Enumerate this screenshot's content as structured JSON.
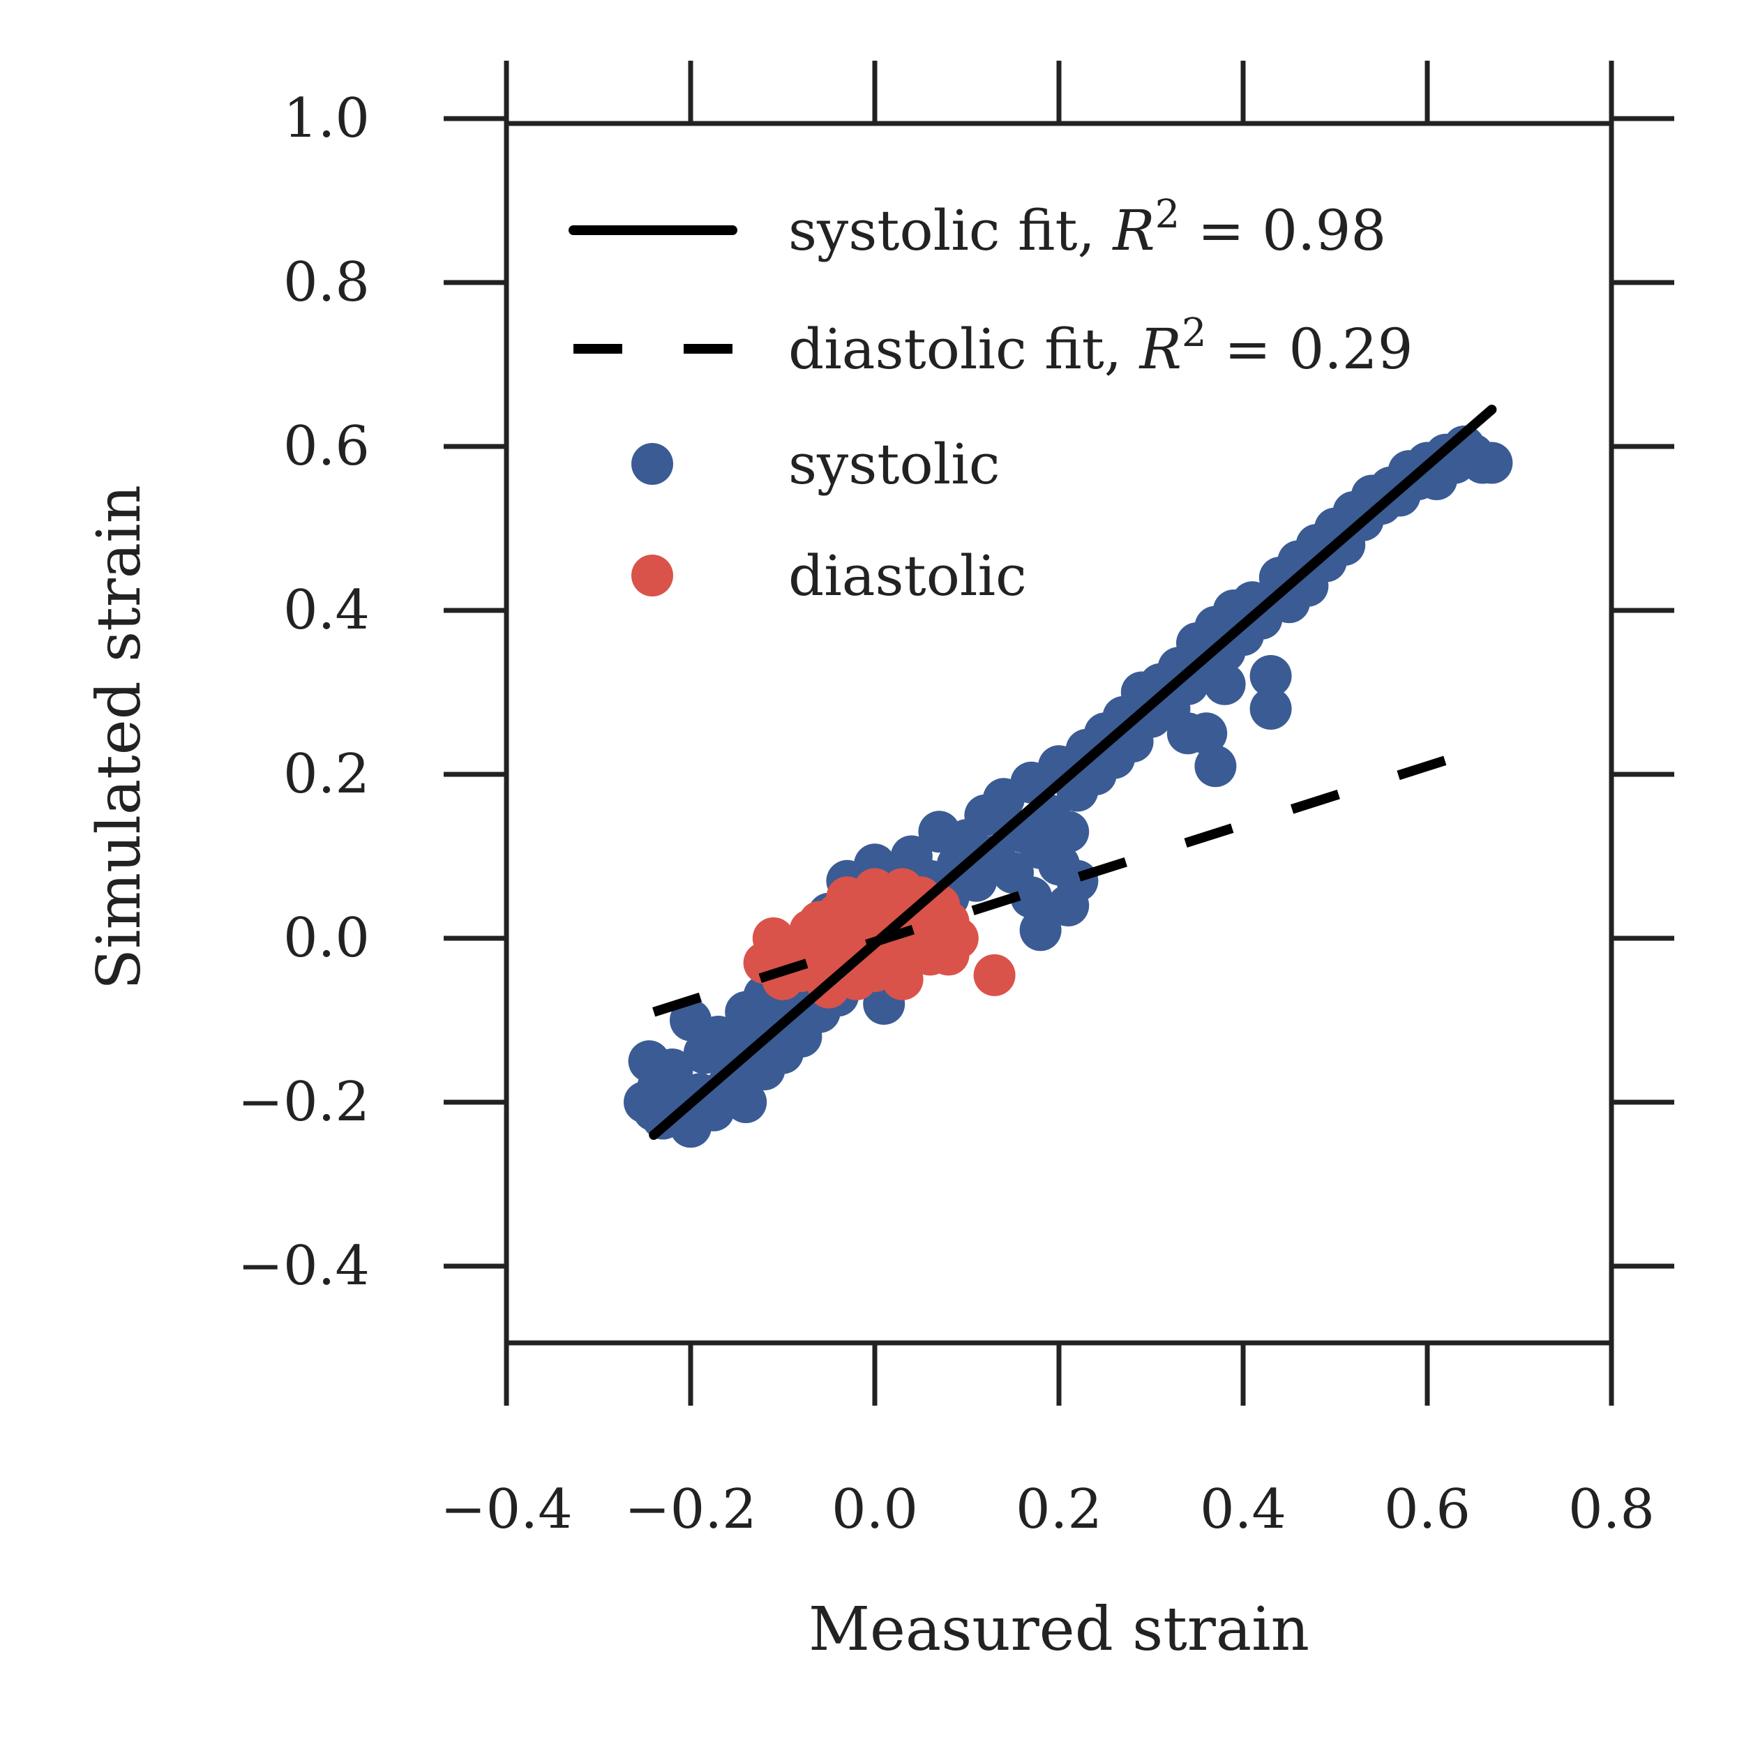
{
  "chart_data": {
    "type": "scatter",
    "title": "",
    "xlabel": "Measured strain",
    "ylabel": "Simulated strain",
    "xlim": [
      -0.4,
      0.8
    ],
    "ylim": [
      -0.5,
      1.0
    ],
    "xticks": [
      -0.4,
      -0.2,
      0.0,
      0.2,
      0.4,
      0.6,
      0.8
    ],
    "yticks": [
      -0.4,
      -0.2,
      0.0,
      0.2,
      0.4,
      0.6,
      0.8,
      1.0
    ],
    "xtick_labels": [
      "−0.4",
      "−0.2",
      "0.0",
      "0.2",
      "0.4",
      "0.6",
      "0.8"
    ],
    "ytick_labels": [
      "−0.4",
      "−0.2",
      "0.0",
      "0.2",
      "0.4",
      "0.6",
      "0.8",
      "1.0"
    ],
    "grid": false,
    "legend_position": "upper-left",
    "legend": [
      {
        "label": "systolic fit, ",
        "math": "R",
        "sup": "2",
        "tail": " = 0.98",
        "style": "solid-line"
      },
      {
        "label": "diastolic fit, ",
        "math": "R",
        "sup": "2",
        "tail": " = 0.29",
        "style": "dashed-line"
      },
      {
        "label": "systolic",
        "style": "marker",
        "color": "#3b5b94"
      },
      {
        "label": "diastolic",
        "style": "marker",
        "color": "#d9534a"
      }
    ],
    "fit_lines": [
      {
        "series": "systolic",
        "x": [
          -0.24,
          0.67
        ],
        "y": [
          -0.24,
          0.645
        ],
        "color": "#000000",
        "dash": "solid"
      },
      {
        "series": "diastolic",
        "x": [
          -0.24,
          0.67
        ],
        "y": [
          -0.09,
          0.235
        ],
        "color": "#000000",
        "dash": "dashed"
      }
    ],
    "series": [
      {
        "name": "systolic",
        "color": "#3b5b94",
        "points": [
          [
            -0.25,
            -0.2
          ],
          [
            -0.245,
            -0.15
          ],
          [
            -0.24,
            -0.21
          ],
          [
            -0.235,
            -0.18
          ],
          [
            -0.23,
            -0.22
          ],
          [
            -0.22,
            -0.16
          ],
          [
            -0.21,
            -0.2
          ],
          [
            -0.2,
            -0.23
          ],
          [
            -0.2,
            -0.1
          ],
          [
            -0.19,
            -0.19
          ],
          [
            -0.185,
            -0.14
          ],
          [
            -0.175,
            -0.21
          ],
          [
            -0.17,
            -0.12
          ],
          [
            -0.16,
            -0.18
          ],
          [
            -0.15,
            -0.15
          ],
          [
            -0.14,
            -0.09
          ],
          [
            -0.14,
            -0.2
          ],
          [
            -0.13,
            -0.13
          ],
          [
            -0.12,
            -0.16
          ],
          [
            -0.12,
            -0.07
          ],
          [
            -0.11,
            -0.11
          ],
          [
            -0.1,
            -0.14
          ],
          [
            -0.09,
            -0.03
          ],
          [
            -0.09,
            -0.09
          ],
          [
            -0.08,
            -0.12
          ],
          [
            -0.07,
            -0.06
          ],
          [
            -0.07,
            0.0
          ],
          [
            -0.06,
            -0.09
          ],
          [
            -0.05,
            -0.03
          ],
          [
            -0.05,
            0.03
          ],
          [
            -0.04,
            -0.07
          ],
          [
            -0.03,
            0.02
          ],
          [
            -0.03,
            0.07
          ],
          [
            -0.02,
            -0.05
          ],
          [
            -0.01,
            0.05
          ],
          [
            0.0,
            -0.02
          ],
          [
            0.0,
            0.09
          ],
          [
            0.01,
            -0.08
          ],
          [
            0.01,
            0.03
          ],
          [
            0.02,
            0.06
          ],
          [
            0.03,
            0.01
          ],
          [
            0.04,
            0.1
          ],
          [
            0.05,
            0.04
          ],
          [
            0.06,
            0.07
          ],
          [
            0.07,
            0.13
          ],
          [
            0.08,
            0.05
          ],
          [
            0.09,
            0.09
          ],
          [
            0.1,
            0.12
          ],
          [
            0.11,
            0.07
          ],
          [
            0.12,
            0.15
          ],
          [
            0.13,
            0.1
          ],
          [
            0.14,
            0.17
          ],
          [
            0.15,
            0.08
          ],
          [
            0.16,
            0.13
          ],
          [
            0.17,
            0.05
          ],
          [
            0.17,
            0.19
          ],
          [
            0.18,
            0.01
          ],
          [
            0.18,
            0.11
          ],
          [
            0.19,
            0.15
          ],
          [
            0.2,
            0.09
          ],
          [
            0.2,
            0.21
          ],
          [
            0.21,
            0.04
          ],
          [
            0.21,
            0.13
          ],
          [
            0.22,
            0.07
          ],
          [
            0.22,
            0.18
          ],
          [
            0.23,
            0.23
          ],
          [
            0.24,
            0.2
          ],
          [
            0.25,
            0.25
          ],
          [
            0.26,
            0.22
          ],
          [
            0.27,
            0.27
          ],
          [
            0.28,
            0.24
          ],
          [
            0.29,
            0.3
          ],
          [
            0.3,
            0.27
          ],
          [
            0.31,
            0.31
          ],
          [
            0.32,
            0.28
          ],
          [
            0.33,
            0.33
          ],
          [
            0.34,
            0.31
          ],
          [
            0.34,
            0.25
          ],
          [
            0.35,
            0.36
          ],
          [
            0.36,
            0.33
          ],
          [
            0.36,
            0.25
          ],
          [
            0.37,
            0.21
          ],
          [
            0.37,
            0.38
          ],
          [
            0.38,
            0.35
          ],
          [
            0.38,
            0.31
          ],
          [
            0.39,
            0.4
          ],
          [
            0.4,
            0.37
          ],
          [
            0.41,
            0.41
          ],
          [
            0.42,
            0.39
          ],
          [
            0.43,
            0.32
          ],
          [
            0.43,
            0.28
          ],
          [
            0.44,
            0.44
          ],
          [
            0.45,
            0.41
          ],
          [
            0.46,
            0.46
          ],
          [
            0.47,
            0.43
          ],
          [
            0.48,
            0.48
          ],
          [
            0.49,
            0.46
          ],
          [
            0.5,
            0.5
          ],
          [
            0.51,
            0.48
          ],
          [
            0.52,
            0.52
          ],
          [
            0.53,
            0.51
          ],
          [
            0.54,
            0.54
          ],
          [
            0.55,
            0.53
          ],
          [
            0.56,
            0.55
          ],
          [
            0.57,
            0.54
          ],
          [
            0.58,
            0.57
          ],
          [
            0.59,
            0.56
          ],
          [
            0.6,
            0.58
          ],
          [
            0.61,
            0.56
          ],
          [
            0.62,
            0.59
          ],
          [
            0.63,
            0.58
          ],
          [
            0.64,
            0.6
          ],
          [
            0.65,
            0.59
          ],
          [
            0.66,
            0.58
          ],
          [
            0.67,
            0.58
          ]
        ]
      },
      {
        "name": "diastolic",
        "color": "#d9534a",
        "points": [
          [
            -0.12,
            -0.03
          ],
          [
            -0.11,
            0.0
          ],
          [
            -0.1,
            -0.05
          ],
          [
            -0.09,
            -0.02
          ],
          [
            -0.08,
            -0.04
          ],
          [
            -0.07,
            0.01
          ],
          [
            -0.06,
            -0.03
          ],
          [
            -0.06,
            0.02
          ],
          [
            -0.05,
            -0.06
          ],
          [
            -0.05,
            -0.01
          ],
          [
            -0.04,
            0.03
          ],
          [
            -0.04,
            -0.04
          ],
          [
            -0.03,
            0.0
          ],
          [
            -0.03,
            0.05
          ],
          [
            -0.02,
            -0.05
          ],
          [
            -0.02,
            0.02
          ],
          [
            -0.01,
            -0.02
          ],
          [
            -0.01,
            0.04
          ],
          [
            0.0,
            0.01
          ],
          [
            0.0,
            0.06
          ],
          [
            0.0,
            -0.04
          ],
          [
            0.01,
            0.03
          ],
          [
            0.01,
            -0.01
          ],
          [
            0.02,
            0.05
          ],
          [
            0.02,
            0.0
          ],
          [
            0.02,
            -0.03
          ],
          [
            0.03,
            0.02
          ],
          [
            0.03,
            0.06
          ],
          [
            0.03,
            -0.05
          ],
          [
            0.04,
            0.03
          ],
          [
            0.04,
            -0.02
          ],
          [
            0.05,
            0.0
          ],
          [
            0.05,
            0.05
          ],
          [
            0.06,
            0.02
          ],
          [
            0.06,
            -0.02
          ],
          [
            0.07,
            0.04
          ],
          [
            0.07,
            0.0
          ],
          [
            0.08,
            0.02
          ],
          [
            0.08,
            -0.02
          ],
          [
            0.09,
            0.0
          ],
          [
            0.13,
            -0.045
          ]
        ]
      }
    ]
  }
}
